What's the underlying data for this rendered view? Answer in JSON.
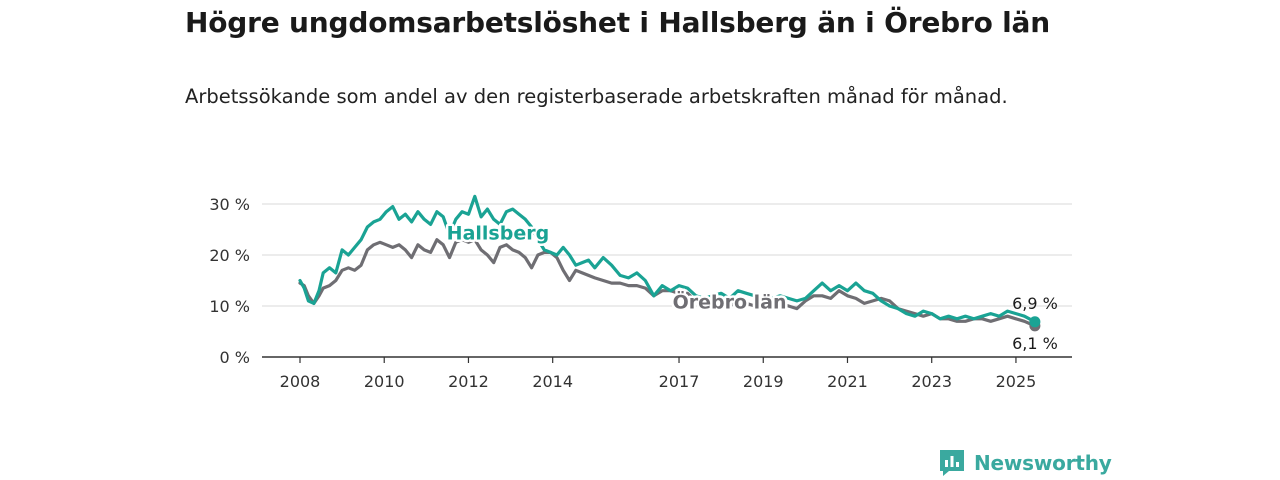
{
  "title": "Högre ungdomsarbetslöshet i Hallsberg än i Örebro län",
  "subtitle": "Arbetssökande som andel av den registerbaserade arbetskraften månad för månad.",
  "brand": {
    "name": "Newsworthy"
  },
  "colors": {
    "hallsberg": "#1aa394",
    "orebro": "#6f6e73",
    "grid": "#d9d9d9",
    "axis": "#333333"
  },
  "chart_data": {
    "type": "line",
    "title": "Högre ungdomsarbetslöshet i Hallsberg än i Örebro län",
    "subtitle": "Arbetssökande som andel av den registerbaserade arbetskraften månad för månad.",
    "xlim": [
      2008,
      2025.5
    ],
    "ylim": [
      0,
      32
    ],
    "y_ticks": [
      0,
      10,
      20,
      30
    ],
    "y_tick_labels": [
      "0 %",
      "10 %",
      "20 %",
      "30 %"
    ],
    "x_ticks": [
      2008,
      2010,
      2012,
      2014,
      2017,
      2019,
      2021,
      2023,
      2025
    ],
    "x_tick_labels": [
      "2008",
      "2010",
      "2012",
      "2014",
      "2017",
      "2019",
      "2021",
      "2023",
      "2025"
    ],
    "grid": true,
    "series": [
      {
        "name": "Hallsberg",
        "end_label": "6,9 %",
        "x": [
          2008.0,
          2008.1,
          2008.2,
          2008.33,
          2008.45,
          2008.55,
          2008.7,
          2008.85,
          2009.0,
          2009.15,
          2009.3,
          2009.45,
          2009.6,
          2009.75,
          2009.9,
          2010.05,
          2010.2,
          2010.35,
          2010.5,
          2010.65,
          2010.8,
          2010.95,
          2011.1,
          2011.25,
          2011.4,
          2011.55,
          2011.7,
          2011.85,
          2012.0,
          2012.15,
          2012.3,
          2012.45,
          2012.6,
          2012.75,
          2012.9,
          2013.05,
          2013.2,
          2013.35,
          2013.5,
          2013.65,
          2013.8,
          2013.95,
          2014.1,
          2014.25,
          2014.4,
          2014.55,
          2014.7,
          2014.85,
          2015.0,
          2015.2,
          2015.4,
          2015.6,
          2015.8,
          2016.0,
          2016.2,
          2016.4,
          2016.6,
          2016.8,
          2017.0,
          2017.2,
          2017.4,
          2017.6,
          2017.8,
          2018.0,
          2018.2,
          2018.4,
          2018.6,
          2018.8,
          2019.0,
          2019.2,
          2019.4,
          2019.6,
          2019.8,
          2020.0,
          2020.2,
          2020.4,
          2020.6,
          2020.8,
          2021.0,
          2021.2,
          2021.4,
          2021.6,
          2021.8,
          2022.0,
          2022.2,
          2022.4,
          2022.6,
          2022.8,
          2023.0,
          2023.2,
          2023.4,
          2023.6,
          2023.8,
          2024.0,
          2024.2,
          2024.4,
          2024.6,
          2024.8,
          2025.0,
          2025.2,
          2025.45
        ],
        "values": [
          15,
          13.5,
          11,
          10.5,
          13,
          16.5,
          17.5,
          16.5,
          21,
          20,
          21.5,
          23,
          25.5,
          26.5,
          27,
          28.5,
          29.5,
          27,
          28,
          26.5,
          28.5,
          27,
          26,
          28.5,
          27.5,
          24,
          27,
          28.5,
          28,
          31.5,
          27.5,
          29,
          27,
          26,
          28.5,
          29,
          28,
          27,
          25.5,
          23,
          21,
          20.5,
          20,
          21.5,
          20,
          18,
          18.5,
          19,
          17.5,
          19.5,
          18,
          16,
          15.5,
          16.5,
          15,
          12,
          14,
          13,
          14,
          13.5,
          12,
          11.5,
          12,
          12.5,
          11.5,
          13,
          12.5,
          12,
          11,
          11.5,
          12,
          11.5,
          11,
          11.5,
          13,
          14.5,
          13,
          14,
          13,
          14.5,
          13,
          12.5,
          11,
          10,
          9.5,
          8.5,
          8,
          9,
          8.5,
          7.5,
          8,
          7.5,
          8,
          7.5,
          8,
          8.5,
          8,
          9,
          8.5,
          8,
          6.9
        ]
      },
      {
        "name": "Örebro län",
        "end_label": "6,1 %",
        "x": [
          2008.0,
          2008.1,
          2008.2,
          2008.33,
          2008.45,
          2008.55,
          2008.7,
          2008.85,
          2009.0,
          2009.15,
          2009.3,
          2009.45,
          2009.6,
          2009.75,
          2009.9,
          2010.05,
          2010.2,
          2010.35,
          2010.5,
          2010.65,
          2010.8,
          2010.95,
          2011.1,
          2011.25,
          2011.4,
          2011.55,
          2011.7,
          2011.85,
          2012.0,
          2012.15,
          2012.3,
          2012.45,
          2012.6,
          2012.75,
          2012.9,
          2013.05,
          2013.2,
          2013.35,
          2013.5,
          2013.65,
          2013.8,
          2013.95,
          2014.1,
          2014.25,
          2014.4,
          2014.55,
          2014.7,
          2014.85,
          2015.0,
          2015.2,
          2015.4,
          2015.6,
          2015.8,
          2016.0,
          2016.2,
          2016.4,
          2016.6,
          2016.8,
          2017.0,
          2017.2,
          2017.4,
          2017.6,
          2017.8,
          2018.0,
          2018.2,
          2018.4,
          2018.6,
          2018.8,
          2019.0,
          2019.2,
          2019.4,
          2019.6,
          2019.8,
          2020.0,
          2020.2,
          2020.4,
          2020.6,
          2020.8,
          2021.0,
          2021.2,
          2021.4,
          2021.6,
          2021.8,
          2022.0,
          2022.2,
          2022.4,
          2022.6,
          2022.8,
          2023.0,
          2023.2,
          2023.4,
          2023.6,
          2023.8,
          2024.0,
          2024.2,
          2024.4,
          2024.6,
          2024.8,
          2025.0,
          2025.2,
          2025.45
        ],
        "values": [
          14.5,
          14,
          12,
          10.5,
          12,
          13.5,
          14,
          15,
          17,
          17.5,
          17,
          18,
          21,
          22,
          22.5,
          22,
          21.5,
          22,
          21,
          19.5,
          22,
          21,
          20.5,
          23,
          22,
          19.5,
          22.5,
          23,
          22.5,
          23,
          21,
          20,
          18.5,
          21.5,
          22,
          21,
          20.5,
          19.5,
          17.5,
          20,
          20.5,
          20.5,
          19.5,
          17,
          15,
          17,
          16.5,
          16,
          15.5,
          15,
          14.5,
          14.5,
          14,
          14,
          13.5,
          12,
          13,
          13,
          12.5,
          12.5,
          11,
          11.5,
          11,
          10.5,
          10,
          11,
          10.5,
          10,
          9.5,
          10,
          10.5,
          10,
          9.5,
          11,
          12,
          12,
          11.5,
          13,
          12,
          11.5,
          10.5,
          11,
          11.5,
          11,
          9.5,
          9,
          8.5,
          8,
          8.5,
          7.5,
          7.5,
          7,
          7,
          7.5,
          7.5,
          7,
          7.5,
          8,
          7.5,
          7,
          6.1
        ]
      }
    ],
    "annotations": [
      {
        "text": "Hallsberg",
        "x": 2012.7,
        "y": 23
      },
      {
        "text": "Örebro län",
        "x": 2018.2,
        "y": 9.5
      }
    ]
  }
}
